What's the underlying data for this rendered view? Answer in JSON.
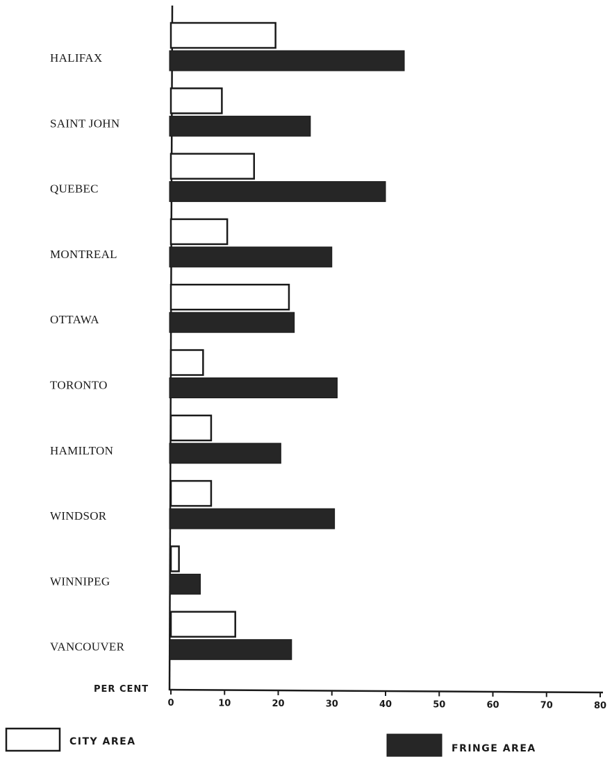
{
  "chart_data": {
    "type": "bar",
    "orientation": "horizontal",
    "categories": [
      "HALIFAX",
      "SAINT JOHN",
      "QUEBEC",
      "MONTREAL",
      "OTTAWA",
      "TORONTO",
      "HAMILTON",
      "WINDSOR",
      "WINNIPEG",
      "VANCOUVER"
    ],
    "series": [
      {
        "name": "CITY AREA",
        "fill": "#ffffff",
        "stroke": "#1a1a1a",
        "values": [
          19.5,
          9.5,
          15.5,
          10.5,
          22,
          6,
          7.5,
          7.5,
          1.5,
          12
        ]
      },
      {
        "name": "FRINGE AREA",
        "fill": "#262626",
        "stroke": "#1a1a1a",
        "values": [
          43.5,
          26,
          40,
          30,
          23,
          31,
          20.5,
          30.5,
          5.5,
          22.5
        ]
      }
    ],
    "xlabel": "PER CENT",
    "xlim": [
      0,
      80
    ],
    "xticks": [
      "0",
      "10",
      "20",
      "30",
      "40",
      "50",
      "60",
      "70",
      "80"
    ],
    "grid": false,
    "legend_position": "bottom"
  }
}
